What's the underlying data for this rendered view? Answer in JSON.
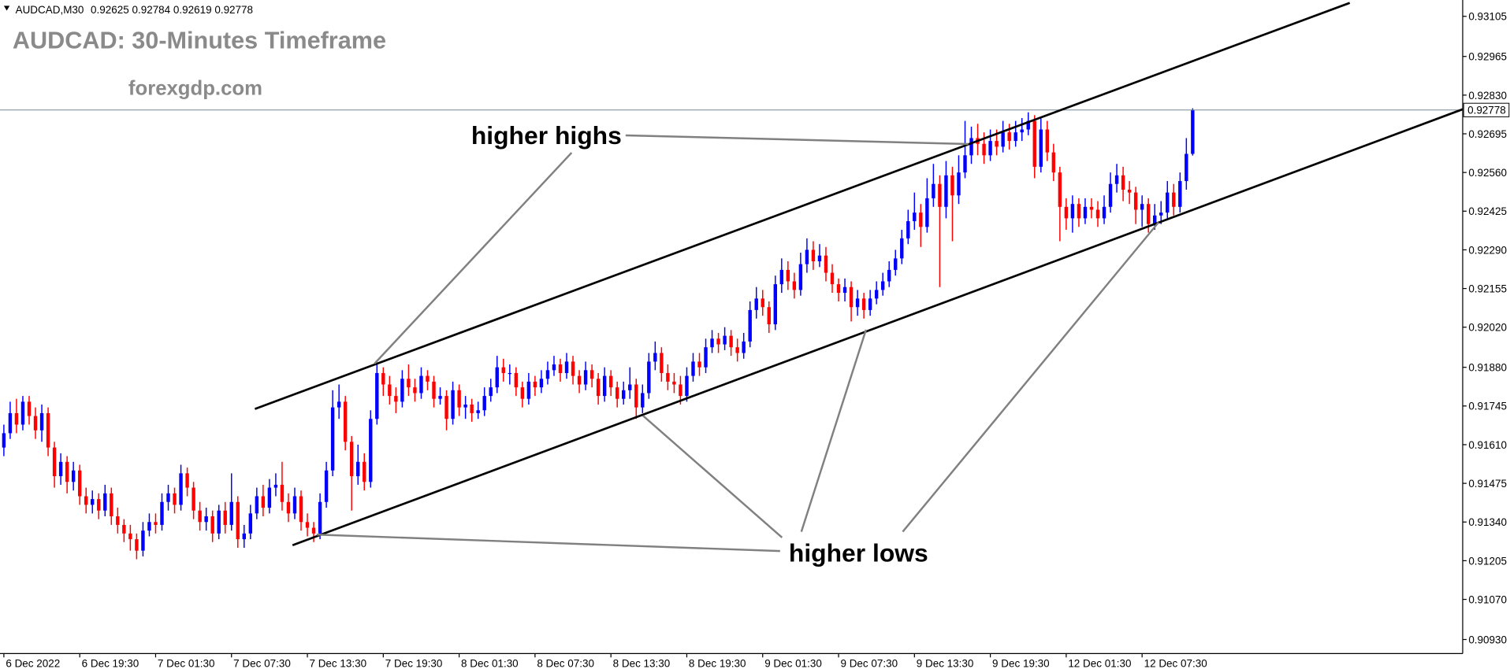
{
  "chart_data": {
    "type": "candlestick",
    "header": "AUDCAD,M30",
    "title": "AUDCAD: 30-Minutes Timeframe",
    "subtitle": "forexgdp.com",
    "annotations": [
      "higher highs",
      "higher lows"
    ],
    "up_color": "#0000ff",
    "down_color": "#ff0000",
    "open": [
      0.916,
      0.9165,
      0.9172,
      0.9168,
      0.9176,
      0.9171,
      0.9166,
      0.9172,
      0.916,
      0.915,
      0.9155,
      0.9148,
      0.9152,
      0.9143,
      0.914,
      0.9142,
      0.9138,
      0.9144,
      0.9136,
      0.9133,
      0.913,
      0.9128,
      0.9124,
      0.9131,
      0.9134,
      0.9133,
      0.9141,
      0.9144,
      0.914,
      0.9151,
      0.9146,
      0.9138,
      0.9134,
      0.9136,
      0.913,
      0.9138,
      0.9133,
      0.9141,
      0.9128,
      0.913,
      0.9137,
      0.9143,
      0.9139,
      0.9146,
      0.9147,
      0.9141,
      0.9137,
      0.9143,
      0.9134,
      0.9132,
      0.913,
      0.9141,
      0.9152,
      0.9174,
      0.9176,
      0.9162,
      0.915,
      0.9155,
      0.9148,
      0.917,
      0.9186,
      0.9182,
      0.9178,
      0.9176,
      0.9184,
      0.9181,
      0.9179,
      0.9185,
      0.9183,
      0.9177,
      0.9178,
      0.917,
      0.918,
      0.9174,
      0.9175,
      0.9172,
      0.9173,
      0.9178,
      0.9181,
      0.9188,
      0.9186,
      0.9186,
      0.9181,
      0.9177,
      0.9183,
      0.9181,
      0.9184,
      0.9187,
      0.9189,
      0.9186,
      0.919,
      0.9185,
      0.9182,
      0.9187,
      0.9184,
      0.9178,
      0.9185,
      0.9181,
      0.9177,
      0.918,
      0.9182,
      0.9174,
      0.9179,
      0.919,
      0.9193,
      0.9186,
      0.9183,
      0.9182,
      0.9178,
      0.9185,
      0.919,
      0.9188,
      0.9195,
      0.9198,
      0.9196,
      0.9199,
      0.9195,
      0.9193,
      0.9197,
      0.9208,
      0.9212,
      0.9209,
      0.9203,
      0.9217,
      0.9222,
      0.9218,
      0.9215,
      0.9224,
      0.9229,
      0.9225,
      0.9227,
      0.9221,
      0.9217,
      0.9214,
      0.9216,
      0.9209,
      0.9212,
      0.9208,
      0.9212,
      0.9215,
      0.9218,
      0.9222,
      0.9226,
      0.9233,
      0.9239,
      0.9242,
      0.9237,
      0.9247,
      0.9252,
      0.9244,
      0.9255,
      0.9248,
      0.9256,
      0.9262,
      0.9268,
      0.9266,
      0.9262,
      0.9267,
      0.9265,
      0.927,
      0.9267,
      0.927,
      0.9271,
      0.9274,
      0.9258,
      0.9271,
      0.9263,
      0.9256,
      0.9244,
      0.924,
      0.9245,
      0.924,
      0.9244,
      0.9243,
      0.924,
      0.9244,
      0.9252,
      0.9255,
      0.925,
      0.9249,
      0.9243,
      0.9245,
      0.9238,
      0.9241,
      0.9242,
      0.9249,
      0.9244,
      0.9253,
      0.92625
    ],
    "high": [
      0.9168,
      0.9176,
      0.9177,
      0.9178,
      0.9178,
      0.9174,
      0.9175,
      0.9174,
      0.9162,
      0.9158,
      0.9157,
      0.9155,
      0.9154,
      0.9146,
      0.9145,
      0.9144,
      0.9147,
      0.9146,
      0.9139,
      0.9135,
      0.9133,
      0.913,
      0.9134,
      0.9137,
      0.9137,
      0.9144,
      0.9147,
      0.9146,
      0.9154,
      0.9153,
      0.9148,
      0.9141,
      0.9139,
      0.9138,
      0.914,
      0.9141,
      0.9151,
      0.9143,
      0.9133,
      0.914,
      0.9146,
      0.9147,
      0.9149,
      0.9151,
      0.9155,
      0.9144,
      0.9146,
      0.9145,
      0.9137,
      0.9134,
      0.9144,
      0.9155,
      0.918,
      0.9182,
      0.9178,
      0.9164,
      0.9161,
      0.9158,
      0.9173,
      0.9189,
      0.9188,
      0.9185,
      0.9181,
      0.9187,
      0.9189,
      0.9184,
      0.9188,
      0.9187,
      0.9185,
      0.9181,
      0.918,
      0.9183,
      0.9182,
      0.9178,
      0.9177,
      0.9176,
      0.9181,
      0.9184,
      0.9192,
      0.9191,
      0.9189,
      0.9188,
      0.9183,
      0.9186,
      0.9185,
      0.9187,
      0.919,
      0.9192,
      0.9191,
      0.9193,
      0.9192,
      0.9187,
      0.919,
      0.9189,
      0.9186,
      0.9188,
      0.9187,
      0.9183,
      0.9183,
      0.9188,
      0.9184,
      0.9182,
      0.9193,
      0.9197,
      0.9195,
      0.9189,
      0.9186,
      0.9185,
      0.9188,
      0.9193,
      0.9193,
      0.9198,
      0.9201,
      0.92,
      0.9202,
      0.9201,
      0.9198,
      0.92,
      0.9211,
      0.9216,
      0.9215,
      0.9211,
      0.922,
      0.9226,
      0.9225,
      0.9221,
      0.9228,
      0.9233,
      0.9232,
      0.9231,
      0.923,
      0.9224,
      0.9219,
      0.9219,
      0.9218,
      0.9215,
      0.9214,
      0.9215,
      0.9218,
      0.9221,
      0.9225,
      0.9229,
      0.9236,
      0.9243,
      0.9249,
      0.9245,
      0.9254,
      0.9259,
      0.9255,
      0.926,
      0.9258,
      0.9262,
      0.9274,
      0.9272,
      0.9273,
      0.927,
      0.9271,
      0.9271,
      0.9274,
      0.9273,
      0.9274,
      0.9275,
      0.9277,
      0.9276,
      0.9275,
      0.9274,
      0.9266,
      0.9258,
      0.9247,
      0.9248,
      0.9247,
      0.9247,
      0.9247,
      0.9246,
      0.9248,
      0.9256,
      0.9259,
      0.9258,
      0.9253,
      0.9251,
      0.9248,
      0.9247,
      0.9245,
      0.9246,
      0.9253,
      0.9252,
      0.9256,
      0.9268,
      0.92784
    ],
    "low": [
      0.9157,
      0.9163,
      0.9165,
      0.9166,
      0.9168,
      0.9163,
      0.9162,
      0.9157,
      0.9146,
      0.9147,
      0.9144,
      0.9145,
      0.914,
      0.9137,
      0.9137,
      0.9135,
      0.9136,
      0.9133,
      0.913,
      0.9127,
      0.9124,
      0.9121,
      0.9122,
      0.9129,
      0.913,
      0.9131,
      0.9138,
      0.9137,
      0.9138,
      0.9143,
      0.9135,
      0.9131,
      0.9131,
      0.9127,
      0.9128,
      0.913,
      0.9131,
      0.9125,
      0.9125,
      0.9128,
      0.9135,
      0.9136,
      0.9137,
      0.9143,
      0.9138,
      0.9134,
      0.9135,
      0.9131,
      0.9129,
      0.9127,
      0.9128,
      0.9139,
      0.915,
      0.917,
      0.9159,
      0.9138,
      0.9147,
      0.9145,
      0.9146,
      0.9168,
      0.9178,
      0.9175,
      0.9172,
      0.9174,
      0.9178,
      0.9176,
      0.9177,
      0.918,
      0.9174,
      0.9175,
      0.9166,
      0.9168,
      0.9171,
      0.917,
      0.9169,
      0.917,
      0.9171,
      0.9176,
      0.9179,
      0.9183,
      0.9182,
      0.9178,
      0.9174,
      0.9175,
      0.9178,
      0.9179,
      0.9182,
      0.9185,
      0.9183,
      0.9184,
      0.9182,
      0.9179,
      0.918,
      0.9181,
      0.9175,
      0.9176,
      0.9178,
      0.9174,
      0.9175,
      0.9177,
      0.917,
      0.9172,
      0.9177,
      0.9187,
      0.9183,
      0.918,
      0.9179,
      0.9175,
      0.9176,
      0.9183,
      0.9185,
      0.9186,
      0.9193,
      0.9193,
      0.9194,
      0.9192,
      0.919,
      0.9191,
      0.9195,
      0.9205,
      0.9206,
      0.92,
      0.9201,
      0.9214,
      0.9215,
      0.9212,
      0.9213,
      0.9221,
      0.9222,
      0.9223,
      0.9218,
      0.9214,
      0.9211,
      0.9211,
      0.9204,
      0.9206,
      0.9205,
      0.9206,
      0.921,
      0.9213,
      0.9216,
      0.922,
      0.9224,
      0.9231,
      0.9236,
      0.923,
      0.9235,
      0.9244,
      0.9216,
      0.924,
      0.9232,
      0.9245,
      0.9254,
      0.9259,
      0.9262,
      0.9259,
      0.926,
      0.9262,
      0.9263,
      0.9264,
      0.9265,
      0.9267,
      0.9269,
      0.9254,
      0.9256,
      0.926,
      0.9253,
      0.9232,
      0.9236,
      0.9235,
      0.9237,
      0.9238,
      0.924,
      0.9237,
      0.9238,
      0.9242,
      0.9249,
      0.9246,
      0.9245,
      0.9238,
      0.9237,
      0.9235,
      0.9236,
      0.9238,
      0.924,
      0.9241,
      0.9242,
      0.925,
      0.92619
    ],
    "close": [
      0.9165,
      0.9172,
      0.9168,
      0.9176,
      0.9171,
      0.9166,
      0.9172,
      0.916,
      0.915,
      0.9155,
      0.9148,
      0.9152,
      0.9143,
      0.914,
      0.9142,
      0.9138,
      0.9144,
      0.9136,
      0.9133,
      0.913,
      0.9128,
      0.9124,
      0.9131,
      0.9134,
      0.9133,
      0.9141,
      0.9144,
      0.914,
      0.9151,
      0.9146,
      0.9138,
      0.9134,
      0.9136,
      0.913,
      0.9138,
      0.9133,
      0.9141,
      0.9128,
      0.913,
      0.9137,
      0.9143,
      0.9139,
      0.9146,
      0.9147,
      0.9141,
      0.9137,
      0.9143,
      0.9134,
      0.9132,
      0.913,
      0.9141,
      0.9152,
      0.9174,
      0.9176,
      0.9162,
      0.915,
      0.9155,
      0.9148,
      0.917,
      0.9186,
      0.9182,
      0.9178,
      0.9176,
      0.9184,
      0.9181,
      0.9179,
      0.9185,
      0.9183,
      0.9177,
      0.9178,
      0.917,
      0.918,
      0.9174,
      0.9175,
      0.9172,
      0.9173,
      0.9178,
      0.9181,
      0.9188,
      0.9186,
      0.9186,
      0.9181,
      0.9177,
      0.9183,
      0.9181,
      0.9184,
      0.9187,
      0.9189,
      0.9186,
      0.919,
      0.9185,
      0.9182,
      0.9187,
      0.9184,
      0.9178,
      0.9185,
      0.9181,
      0.9177,
      0.918,
      0.9182,
      0.9174,
      0.9179,
      0.919,
      0.9193,
      0.9186,
      0.9183,
      0.9182,
      0.9178,
      0.9185,
      0.919,
      0.9188,
      0.9195,
      0.9198,
      0.9196,
      0.9199,
      0.9195,
      0.9193,
      0.9197,
      0.9208,
      0.9212,
      0.9209,
      0.9203,
      0.9217,
      0.9222,
      0.9218,
      0.9215,
      0.9224,
      0.9229,
      0.9225,
      0.9227,
      0.9221,
      0.9217,
      0.9214,
      0.9216,
      0.9209,
      0.9212,
      0.9208,
      0.9212,
      0.9215,
      0.9218,
      0.9222,
      0.9226,
      0.9233,
      0.9239,
      0.9242,
      0.9237,
      0.9247,
      0.9252,
      0.9244,
      0.9255,
      0.9248,
      0.9256,
      0.9262,
      0.9268,
      0.9266,
      0.9262,
      0.9267,
      0.9265,
      0.927,
      0.9267,
      0.927,
      0.9271,
      0.9274,
      0.9258,
      0.9271,
      0.9263,
      0.9256,
      0.9244,
      0.924,
      0.9245,
      0.924,
      0.9244,
      0.9243,
      0.924,
      0.9244,
      0.9252,
      0.9255,
      0.925,
      0.9249,
      0.9243,
      0.9245,
      0.9238,
      0.9241,
      0.9242,
      0.9249,
      0.9244,
      0.9253,
      0.92625,
      0.92778
    ],
    "xlim": [
      -0.61,
      230.7
    ],
    "xticks": [
      {
        "value": 0,
        "label": "6 Dec 2022"
      },
      {
        "value": 12,
        "label": "6 Dec 19:30"
      },
      {
        "value": 24,
        "label": "7 Dec 01:30"
      },
      {
        "value": 36,
        "label": "7 Dec 07:30"
      },
      {
        "value": 48,
        "label": "7 Dec 13:30"
      },
      {
        "value": 60,
        "label": "7 Dec 19:30"
      },
      {
        "value": 72,
        "label": "8 Dec 01:30"
      },
      {
        "value": 84,
        "label": "8 Dec 07:30"
      },
      {
        "value": 96,
        "label": "8 Dec 13:30"
      },
      {
        "value": 108,
        "label": "8 Dec 19:30"
      },
      {
        "value": 120,
        "label": "9 Dec 01:30"
      },
      {
        "value": 132,
        "label": "9 Dec 07:30"
      },
      {
        "value": 144,
        "label": "9 Dec 13:30"
      },
      {
        "value": 156,
        "label": "9 Dec 19:30"
      },
      {
        "value": 168,
        "label": "12 Dec 01:30"
      },
      {
        "value": 180,
        "label": "12 Dec 07:30"
      }
    ],
    "ylim": [
      0.90881,
      0.93162
    ],
    "yticks": [
      0.93105,
      0.92965,
      {
        "value": 0.9283,
        "label": "0.92830"
      },
      0.92695,
      {
        "value": 0.9256,
        "label": "0.92560"
      },
      0.92425,
      {
        "value": 0.9229,
        "label": "0.92290"
      },
      0.92155,
      {
        "value": 0.9202,
        "label": "0.92020"
      },
      {
        "value": 0.9188,
        "label": "0.91880"
      },
      0.91745,
      {
        "value": 0.9161,
        "label": "0.91610"
      },
      0.91475,
      {
        "value": 0.9134,
        "label": "0.91340"
      },
      0.91205,
      {
        "value": 0.9107,
        "label": "0.91070"
      },
      {
        "value": 0.9093,
        "label": "0.90930"
      }
    ]
  }
}
